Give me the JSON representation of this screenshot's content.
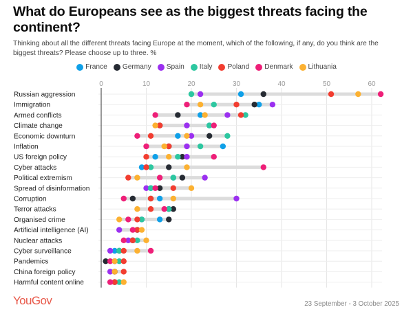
{
  "header": {
    "title": "What do Europeans see as the biggest threats facing the continent?",
    "subtitle": "Thinking about all the different threats facing Europe at the moment, which of the following, if any, do you think are the biggest threats? Please choose up to three. %"
  },
  "legend": [
    {
      "name": "France",
      "color": "#0fa0e8"
    },
    {
      "name": "Germany",
      "color": "#262b33"
    },
    {
      "name": "Spain",
      "color": "#9b30f0"
    },
    {
      "name": "Italy",
      "color": "#2dc7a0"
    },
    {
      "name": "Poland",
      "color": "#f23d30"
    },
    {
      "name": "Denmark",
      "color": "#ee1f78"
    },
    {
      "name": "Lithuania",
      "color": "#fcb131"
    }
  ],
  "footer": {
    "brand": "YouGov",
    "date_range": "23 September - 3 October 2025"
  },
  "chart_data": {
    "type": "scatter",
    "subtype": "dot-plot",
    "title": "What do Europeans see as the biggest threats facing the continent?",
    "xlabel": "%",
    "ylabel": "",
    "xlim": [
      0,
      65
    ],
    "x_ticks": [
      0,
      10,
      20,
      30,
      40,
      50,
      60
    ],
    "grid": true,
    "legend_position": "top-center",
    "categories": [
      "Russian aggression",
      "Immigration",
      "Armed conflicts",
      "Climate change",
      "Economic downturn",
      "Inflation",
      "US foreign policy",
      "Cyber attacks",
      "Political extremism",
      "Spread of disinformation",
      "Corruption",
      "Terror attacks",
      "Organised crime",
      "Artificial intelligence (AI)",
      "Nuclear attacks",
      "Cyber surveillance",
      "Pandemics",
      "China foreign policy",
      "Harmful content online"
    ],
    "series": [
      {
        "name": "France",
        "color": "#0fa0e8",
        "values": [
          31,
          35,
          22,
          24,
          17,
          27,
          12,
          9,
          16,
          11,
          13,
          15,
          13,
          8,
          7,
          3,
          3,
          3,
          3
        ]
      },
      {
        "name": "Germany",
        "color": "#262b33",
        "values": [
          36,
          34,
          17,
          13,
          24,
          15,
          18,
          15,
          18,
          13,
          7,
          16,
          15,
          8,
          7,
          4,
          1,
          3,
          3
        ]
      },
      {
        "name": "Spain",
        "color": "#9b30f0",
        "values": [
          22,
          38,
          28,
          19,
          20,
          19,
          19,
          10,
          23,
          10,
          30,
          15,
          9,
          4,
          6,
          2,
          3,
          2,
          3
        ]
      },
      {
        "name": "Italy",
        "color": "#2dc7a0",
        "values": [
          20,
          25,
          32,
          24,
          28,
          22,
          17,
          11,
          16,
          11,
          11,
          15,
          9,
          8,
          8,
          4,
          4,
          3,
          4
        ]
      },
      {
        "name": "Poland",
        "color": "#f23d30",
        "values": [
          51,
          30,
          31,
          13,
          11,
          15,
          10,
          10,
          6,
          16,
          11,
          11,
          8,
          8,
          7,
          5,
          5,
          5,
          3
        ]
      },
      {
        "name": "Denmark",
        "color": "#ee1f78",
        "values": [
          62,
          19,
          12,
          25,
          8,
          10,
          25,
          36,
          13,
          12,
          5,
          14,
          6,
          7,
          5,
          11,
          2,
          3,
          2
        ]
      },
      {
        "name": "Lithuania",
        "color": "#fcb131",
        "values": [
          57,
          22,
          23,
          12,
          19,
          14,
          15,
          19,
          8,
          20,
          16,
          8,
          4,
          9,
          10,
          8,
          3,
          3,
          5
        ]
      }
    ]
  }
}
